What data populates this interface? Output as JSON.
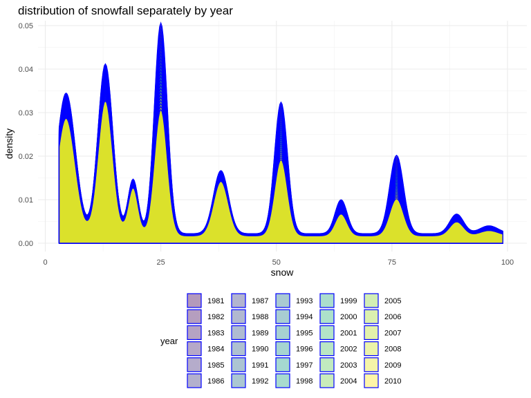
{
  "chart_data": {
    "type": "area",
    "title": "distribution of snowfall separately by year",
    "xlabel": "snow",
    "ylabel": "density",
    "xlim": [
      0,
      100
    ],
    "ylim": [
      0,
      0.05
    ],
    "x_ticks": [
      "0",
      "25",
      "50",
      "75",
      "100"
    ],
    "x_tick_values": [
      0,
      25,
      50,
      75,
      100
    ],
    "y_ticks": [
      "0.00",
      "0.01",
      "0.02",
      "0.03",
      "0.04",
      "0.05"
    ],
    "y_tick_values": [
      0,
      0.01,
      0.02,
      0.03,
      0.04,
      0.05
    ],
    "grid": true,
    "legend_placement": "bottom",
    "legend_title": "year",
    "legend_columns": 5,
    "legend_entries": [
      "1981",
      "1982",
      "1983",
      "1984",
      "1985",
      "1986",
      "1987",
      "1988",
      "1989",
      "1990",
      "1991",
      "1992",
      "1993",
      "1994",
      "1995",
      "1996",
      "1997",
      "1998",
      "1999",
      "2000",
      "2001",
      "2002",
      "2003",
      "2004",
      "2005",
      "2006",
      "2007",
      "2008",
      "2009",
      "2010"
    ],
    "outline_color": "#0000ff",
    "fill_alpha": 0.4,
    "palette_note": "viridis",
    "peaks": {
      "x": [
        4.5,
        13,
        19,
        25,
        38,
        51,
        64,
        76,
        89,
        96
      ],
      "sd": [
        2.0,
        1.6,
        1.1,
        1.4,
        1.6,
        1.4,
        1.3,
        1.5,
        1.5,
        2.0
      ]
    },
    "series_first_year": {
      "name": "1981",
      "x": [
        3,
        4.5,
        8,
        13,
        19,
        25,
        33,
        38,
        45,
        51,
        57,
        64,
        70,
        76,
        83,
        89,
        96,
        99
      ],
      "y": [
        0.025,
        0.032,
        0.026,
        0.039,
        0.013,
        0.048,
        0.007,
        0.0145,
        0.005,
        0.03,
        0.0035,
        0.0078,
        0.003,
        0.018,
        0.002,
        0.0045,
        0.0018,
        0.001
      ]
    },
    "series_last_year": {
      "name": "2010",
      "x": [
        3,
        4.5,
        8,
        13,
        19,
        25,
        33,
        38,
        45,
        51,
        57,
        64,
        70,
        76,
        83,
        89,
        96,
        99
      ],
      "y": [
        0.023,
        0.027,
        0.022,
        0.031,
        0.011,
        0.029,
        0.006,
        0.0125,
        0.004,
        0.0175,
        0.0028,
        0.005,
        0.0025,
        0.0085,
        0.0015,
        0.0032,
        0.0012,
        0.0008
      ]
    },
    "peak_heights_first_year": [
      0.0323,
      0.039,
      0.0125,
      0.0484,
      0.0145,
      0.0302,
      0.0078,
      0.018,
      0.0045,
      0.0018
    ],
    "peak_heights_last_year": [
      0.027,
      0.031,
      0.011,
      0.029,
      0.0125,
      0.0175,
      0.005,
      0.0085,
      0.0032,
      0.0012
    ],
    "baseline_first_year": 0.0022,
    "baseline_last_year": 0.0017
  }
}
